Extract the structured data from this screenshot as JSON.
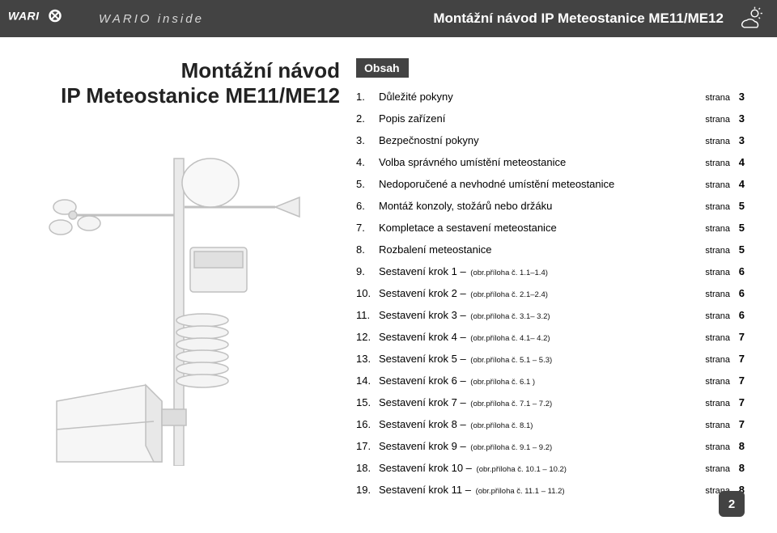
{
  "header": {
    "brand": "WARIO",
    "inside": "WARIO inside",
    "title": "Montážní návod IP Meteostanice ME11/ME12"
  },
  "doc_title_line1": "Montážní návod",
  "doc_title_line2": "IP Meteostanice ME11/ME12",
  "obsah": "Obsah",
  "strana_word": "strana",
  "toc": [
    {
      "n": "1.",
      "label": "Důležité pokyny",
      "note": "",
      "page": "3"
    },
    {
      "n": "2.",
      "label": "Popis zařízení",
      "note": "",
      "page": "3"
    },
    {
      "n": "3.",
      "label": "Bezpečnostní pokyny",
      "note": "",
      "page": "3"
    },
    {
      "n": "4.",
      "label": "Volba správného umístění meteostanice",
      "note": "",
      "page": "4"
    },
    {
      "n": "5.",
      "label": "Nedoporučené a nevhodné umístění meteostanice",
      "note": "",
      "page": "4"
    },
    {
      "n": "6.",
      "label": "Montáž konzoly, stožárů nebo držáku",
      "note": "",
      "page": "5"
    },
    {
      "n": "7.",
      "label": "Kompletace a sestavení meteostanice",
      "note": "",
      "page": "5"
    },
    {
      "n": "8.",
      "label": "Rozbalení meteostanice",
      "note": "",
      "page": "5"
    },
    {
      "n": "9.",
      "label": "Sestavení krok 1 –",
      "note": "(obr.příloha č. 1.1–1.4)",
      "page": "6"
    },
    {
      "n": "10.",
      "label": "Sestavení krok 2 –",
      "note": "(obr.příloha č. 2.1–2.4)",
      "page": "6"
    },
    {
      "n": "11.",
      "label": "Sestavení krok 3 –",
      "note": "(obr.příloha č. 3.1– 3.2)",
      "page": "6"
    },
    {
      "n": "12.",
      "label": "Sestavení krok 4 –",
      "note": "(obr.příloha č. 4.1– 4.2)",
      "page": "7"
    },
    {
      "n": "13.",
      "label": "Sestavení krok 5 –",
      "note": "(obr.příloha č. 5.1 – 5.3)",
      "page": "7"
    },
    {
      "n": "14.",
      "label": "Sestavení krok 6 –",
      "note": "(obr.příloha č. 6.1 )",
      "page": "7"
    },
    {
      "n": "15.",
      "label": "Sestavení krok 7 –",
      "note": "(obr.příloha č. 7.1 – 7.2)",
      "page": "7"
    },
    {
      "n": "16.",
      "label": "Sestavení krok 8 –",
      "note": "(obr.příloha č. 8.1)",
      "page": "7"
    },
    {
      "n": "17.",
      "label": "Sestavení krok 9 –",
      "note": "(obr.příloha č. 9.1 – 9.2)",
      "page": "8"
    },
    {
      "n": "18.",
      "label": "Sestavení krok 10 –",
      "note": "(obr.příloha č. 10.1 – 10.2)",
      "page": "8"
    },
    {
      "n": "19.",
      "label": "Sestavení krok 11 –",
      "note": "(obr.příloha č. 11.1 – 11.2)",
      "page": "8"
    }
  ],
  "page_number": "2",
  "colors": {
    "header_bg": "#434343",
    "text": "#000000",
    "white": "#ffffff"
  },
  "illustration": {
    "type": "line-drawing",
    "description": "white weather station on pole with anemometer cups, wind vane dish, solar sensor box, radiation shield, and rain collector",
    "stroke": "#c8c8c8",
    "fill": "#f4f4f4"
  }
}
